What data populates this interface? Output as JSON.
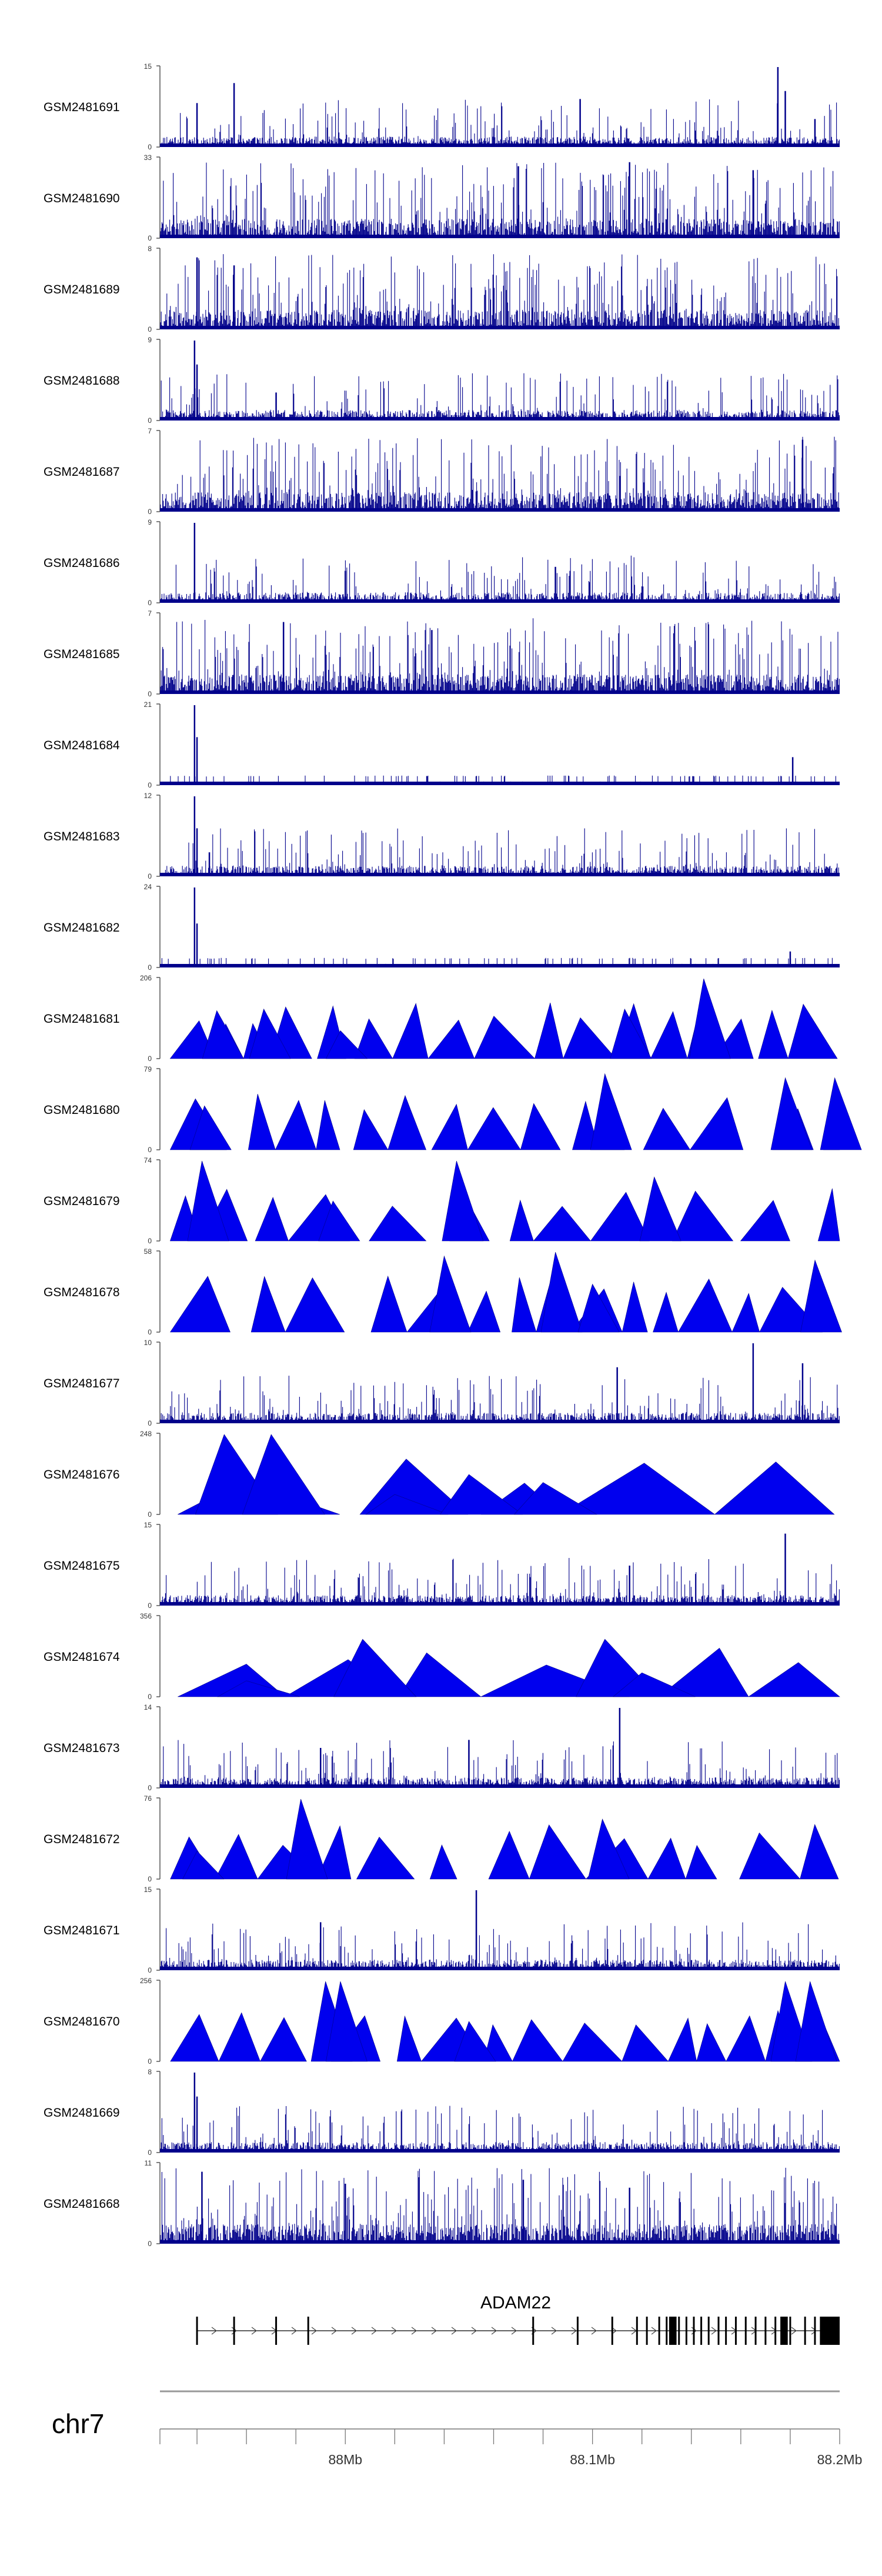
{
  "colors": {
    "signal": "#0000ee",
    "signal_outline": "#00008b",
    "axis": "#555555",
    "gene": "#000000",
    "ideogram": "#999999",
    "background": "#ffffff"
  },
  "chart_data": {
    "type": "area",
    "chromosome": "chr7",
    "x_range_mb": [
      87.925,
      88.2
    ],
    "x_tick_labels": [
      "88Mb",
      "88.1Mb",
      "88.2Mb"
    ],
    "x_tick_values_mb": [
      88.0,
      88.1,
      88.2
    ],
    "minor_tick_step_mb": 0.02,
    "tracks": [
      {
        "name": "GSM2481691",
        "ymax": "15",
        "ymax_value": 15,
        "style": "dense",
        "seed": 11,
        "peaks": [
          [
            87.94,
            0.55
          ],
          [
            87.955,
            0.8
          ],
          [
            88.095,
            0.6
          ],
          [
            88.175,
            1.0
          ],
          [
            88.178,
            0.7
          ],
          [
            88.19,
            0.35
          ]
        ]
      },
      {
        "name": "GSM2481690",
        "ymax": "33",
        "ymax_value": 33,
        "style": "dense_tall",
        "seed": 23,
        "peaks": [
          [
            88.07,
            0.9
          ],
          [
            88.115,
            0.95
          ],
          [
            88.165,
            0.85
          ]
        ]
      },
      {
        "name": "GSM2481689",
        "ymax": "8",
        "ymax_value": 8,
        "style": "dense_tall",
        "seed": 37,
        "peaks": [
          [
            87.94,
            0.9
          ],
          [
            87.955,
            0.8
          ]
        ]
      },
      {
        "name": "GSM2481688",
        "ymax": "9",
        "ymax_value": 9,
        "style": "dense",
        "seed": 41,
        "peaks": [
          [
            87.939,
            1.0
          ],
          [
            87.94,
            0.7
          ],
          [
            87.972,
            0.35
          ]
        ]
      },
      {
        "name": "GSM2481687",
        "ymax": "7",
        "ymax_value": 7,
        "style": "dense_tall",
        "seed": 53,
        "peaks": [
          [
            88.185,
            0.9
          ]
        ]
      },
      {
        "name": "GSM2481686",
        "ymax": "9",
        "ymax_value": 9,
        "style": "dense",
        "seed": 67,
        "peaks": [
          [
            87.939,
            1.0
          ],
          [
            88.0,
            0.4
          ],
          [
            88.085,
            0.45
          ]
        ]
      },
      {
        "name": "GSM2481685",
        "ymax": "7",
        "ymax_value": 7,
        "style": "dense_tall",
        "seed": 71,
        "peaks": [
          [
            87.975,
            0.9
          ],
          [
            88.035,
            0.8
          ]
        ]
      },
      {
        "name": "GSM2481684",
        "ymax": "21",
        "ymax_value": 21,
        "style": "sparse",
        "seed": 83,
        "peaks": [
          [
            87.939,
            1.0
          ],
          [
            87.94,
            0.6
          ],
          [
            88.181,
            0.35
          ]
        ]
      },
      {
        "name": "GSM2481683",
        "ymax": "12",
        "ymax_value": 12,
        "style": "dense",
        "seed": 97,
        "peaks": [
          [
            87.939,
            1.0
          ],
          [
            87.94,
            0.6
          ],
          [
            87.945,
            0.3
          ]
        ]
      },
      {
        "name": "GSM2481682",
        "ymax": "24",
        "ymax_value": 24,
        "style": "sparse",
        "seed": 101,
        "peaks": [
          [
            87.939,
            1.0
          ],
          [
            87.94,
            0.55
          ],
          [
            88.18,
            0.2
          ]
        ]
      },
      {
        "name": "GSM2481681",
        "ymax": "206",
        "ymax_value": 206,
        "style": "triangles",
        "seed": 113,
        "peaks": [
          [
            87.948,
            0.6
          ],
          [
            87.967,
            0.62
          ],
          [
            88.113,
            0.62
          ],
          [
            88.145,
            1.0
          ],
          [
            87.998,
            0.35
          ]
        ]
      },
      {
        "name": "GSM2481680",
        "ymax": "79",
        "ymax_value": 79,
        "style": "triangles",
        "seed": 127,
        "peaks": [
          [
            88.105,
            0.95
          ],
          [
            88.178,
            0.9
          ],
          [
            88.198,
            0.9
          ],
          [
            87.943,
            0.55
          ]
        ]
      },
      {
        "name": "GSM2481679",
        "ymax": "74",
        "ymax_value": 74,
        "style": "triangles",
        "seed": 131,
        "peaks": [
          [
            87.942,
            1.0
          ],
          [
            88.045,
            1.0
          ],
          [
            88.125,
            0.8
          ],
          [
            87.995,
            0.5
          ]
        ]
      },
      {
        "name": "GSM2481678",
        "ymax": "58",
        "ymax_value": 58,
        "style": "triangles",
        "seed": 139,
        "peaks": [
          [
            88.04,
            0.95
          ],
          [
            88.085,
            1.0
          ],
          [
            88.1,
            0.6
          ],
          [
            88.19,
            0.9
          ]
        ]
      },
      {
        "name": "GSM2481677",
        "ymax": "10",
        "ymax_value": 10,
        "style": "dense",
        "seed": 149,
        "peaks": [
          [
            88.165,
            1.0
          ],
          [
            88.185,
            0.75
          ],
          [
            88.11,
            0.7
          ]
        ]
      },
      {
        "name": "GSM2481676",
        "ymax": "248",
        "ymax_value": 248,
        "style": "triangles_wide",
        "seed": 151,
        "peaks": [
          [
            87.951,
            1.0
          ],
          [
            87.97,
            1.0
          ],
          [
            88.02,
            0.25
          ],
          [
            88.05,
            0.5
          ],
          [
            88.08,
            0.4
          ]
        ]
      },
      {
        "name": "GSM2481675",
        "ymax": "15",
        "ymax_value": 15,
        "style": "dense",
        "seed": 163,
        "peaks": [
          [
            88.178,
            0.9
          ],
          [
            88.115,
            0.5
          ]
        ]
      },
      {
        "name": "GSM2481674",
        "ymax": "356",
        "ymax_value": 356,
        "style": "triangles_wide",
        "seed": 167,
        "peaks": [
          [
            88.007,
            0.72
          ],
          [
            88.105,
            0.72
          ],
          [
            88.12,
            0.3
          ],
          [
            87.96,
            0.2
          ]
        ]
      },
      {
        "name": "GSM2481673",
        "ymax": "14",
        "ymax_value": 14,
        "style": "dense",
        "seed": 173,
        "peaks": [
          [
            88.111,
            1.0
          ],
          [
            88.05,
            0.6
          ],
          [
            87.99,
            0.5
          ]
        ]
      },
      {
        "name": "GSM2481672",
        "ymax": "76",
        "ymax_value": 76,
        "style": "triangles",
        "seed": 179,
        "peaks": [
          [
            87.982,
            1.0
          ],
          [
            88.104,
            0.75
          ],
          [
            87.94,
            0.35
          ]
        ]
      },
      {
        "name": "GSM2481671",
        "ymax": "15",
        "ymax_value": 15,
        "style": "dense",
        "seed": 181,
        "peaks": [
          [
            88.053,
            1.0
          ],
          [
            87.99,
            0.6
          ]
        ]
      },
      {
        "name": "GSM2481670",
        "ymax": "256",
        "ymax_value": 256,
        "style": "triangles",
        "seed": 191,
        "peaks": [
          [
            87.992,
            1.0
          ],
          [
            87.998,
            1.0
          ],
          [
            88.178,
            1.0
          ],
          [
            88.188,
            1.0
          ],
          [
            88.05,
            0.5
          ]
        ]
      },
      {
        "name": "GSM2481669",
        "ymax": "8",
        "ymax_value": 8,
        "style": "dense",
        "seed": 193,
        "peaks": [
          [
            87.939,
            1.0
          ],
          [
            87.94,
            0.7
          ]
        ]
      },
      {
        "name": "GSM2481668",
        "ymax": "11",
        "ymax_value": 11,
        "style": "dense_tall",
        "seed": 197,
        "peaks": [
          [
            87.942,
            0.9
          ],
          [
            88.0,
            0.75
          ],
          [
            88.072,
            0.8
          ],
          [
            88.115,
            0.7
          ]
        ]
      }
    ],
    "gene": {
      "name": "ADAM22",
      "start_mb": 87.94,
      "end_mb": 88.2,
      "strand": "+",
      "exons_mb": [
        87.94,
        87.955,
        87.972,
        87.985,
        88.076,
        88.094,
        88.108,
        88.118,
        88.122,
        88.127,
        88.13,
        88.132,
        88.135,
        88.138,
        88.141,
        88.144,
        88.147,
        88.151,
        88.154,
        88.158,
        88.162,
        88.166,
        88.17,
        88.174,
        88.18,
        88.186,
        88.19
      ],
      "thick_exons_mb": [
        [
          88.131,
          88.134
        ],
        [
          88.176,
          88.179
        ],
        [
          88.192,
          88.2
        ]
      ]
    }
  }
}
